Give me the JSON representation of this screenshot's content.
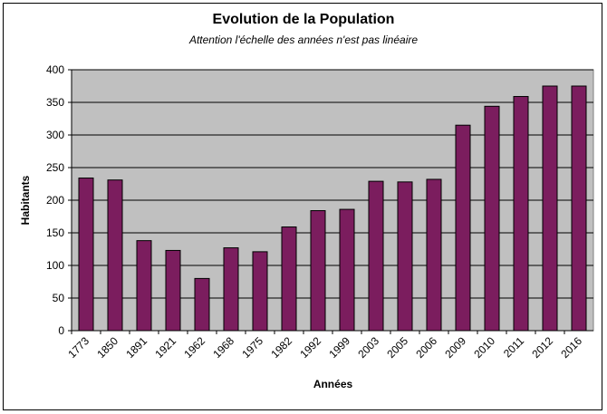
{
  "chart_data": {
    "type": "bar",
    "title": "Evolution de la Population",
    "subtitle": "Attention l'échelle des années n'est pas linéaire",
    "xlabel": "Années",
    "ylabel": "Habitants",
    "categories": [
      "1773",
      "1850",
      "1891",
      "1921",
      "1962",
      "1968",
      "1975",
      "1982",
      "1992",
      "1999",
      "2003",
      "2005",
      "2006",
      "2009",
      "2010",
      "2011",
      "2012",
      "2016"
    ],
    "values": [
      234,
      231,
      138,
      123,
      80,
      127,
      121,
      159,
      184,
      186,
      229,
      228,
      232,
      315,
      344,
      359,
      375,
      375
    ],
    "ylim": [
      0,
      400
    ],
    "yticks": [
      0,
      50,
      100,
      150,
      200,
      250,
      300,
      350,
      400
    ],
    "grid": true,
    "colors": {
      "bar": "#7b1d5e",
      "plot_bg": "#c0c0c0",
      "grid": "#000000"
    }
  }
}
